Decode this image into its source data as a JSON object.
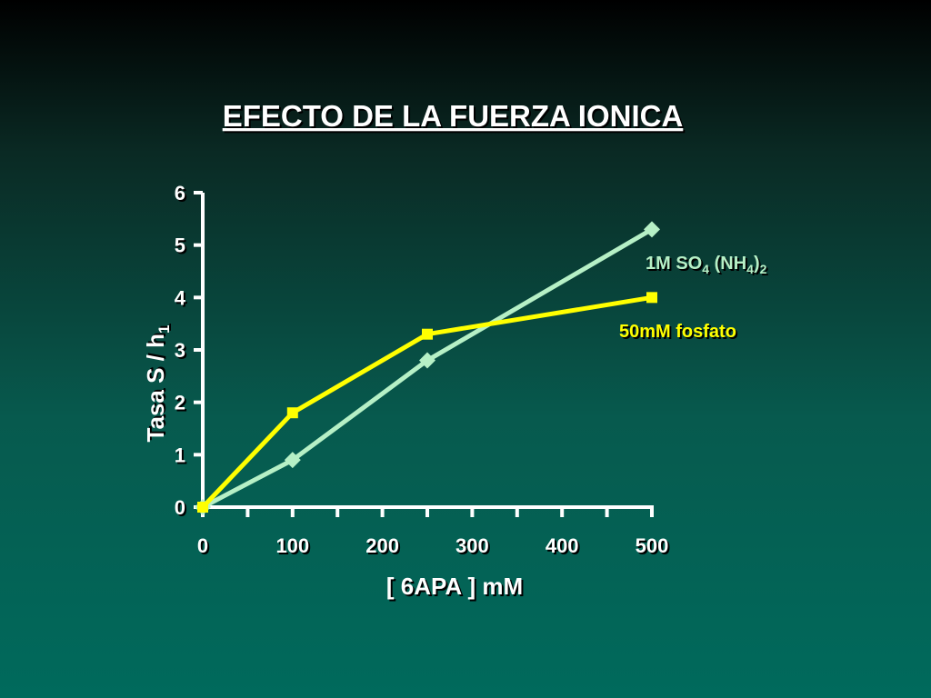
{
  "chart_data": {
    "type": "line",
    "title": "EFECTO DE LA FUERZA IONICA",
    "xlabel": "[ 6APA ] mM",
    "ylabel": "Tasa S / h",
    "ylabel_sub": "1",
    "xlim": [
      0,
      500
    ],
    "ylim": [
      0,
      6
    ],
    "x_ticks": [
      "0",
      "100",
      "200",
      "300",
      "400",
      "500"
    ],
    "y_ticks": [
      "0",
      "1",
      "2",
      "3",
      "4",
      "5",
      "6"
    ],
    "grid": false,
    "series": [
      {
        "name": "1M SO4 (NH4)2",
        "label_main": "1M SO",
        "label_sub1": "4",
        "label_mid": " (NH",
        "label_sub2": "4",
        "label_end": ")",
        "label_sub3": "2",
        "color": "#b6f0c6",
        "marker": "diamond",
        "x": [
          0,
          100,
          250,
          500
        ],
        "y": [
          0,
          0.9,
          2.8,
          5.3
        ]
      },
      {
        "name": "50mM fosfato",
        "color": "#ffff00",
        "marker": "square",
        "x": [
          0,
          100,
          250,
          500
        ],
        "y": [
          0,
          1.8,
          3.3,
          4.0
        ]
      }
    ]
  }
}
